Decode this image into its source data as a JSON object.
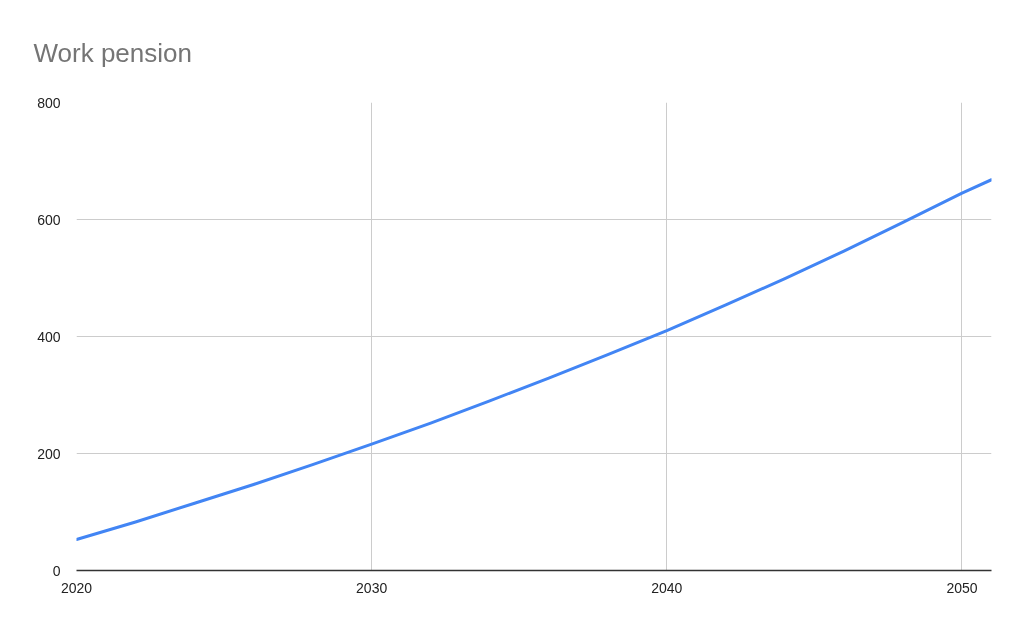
{
  "chart_data": {
    "type": "line",
    "title": "Work pension",
    "x": [
      2020,
      2022,
      2024,
      2026,
      2028,
      2030,
      2032,
      2034,
      2036,
      2038,
      2040,
      2042,
      2044,
      2046,
      2048,
      2050,
      2051
    ],
    "series": [
      {
        "color": "#4285f4",
        "values": [
          53,
          83,
          115,
          147,
          181,
          216,
          252,
          290,
          329,
          369,
          410,
          454,
          499,
          546,
          595,
          645,
          668
        ]
      }
    ],
    "xlim": [
      2020,
      2051
    ],
    "ylim": [
      0,
      800
    ],
    "xticks": [
      2020,
      2030,
      2040,
      2050
    ],
    "yticks": [
      0,
      200,
      400,
      600,
      800
    ],
    "grid": true,
    "line_style": "solid"
  }
}
